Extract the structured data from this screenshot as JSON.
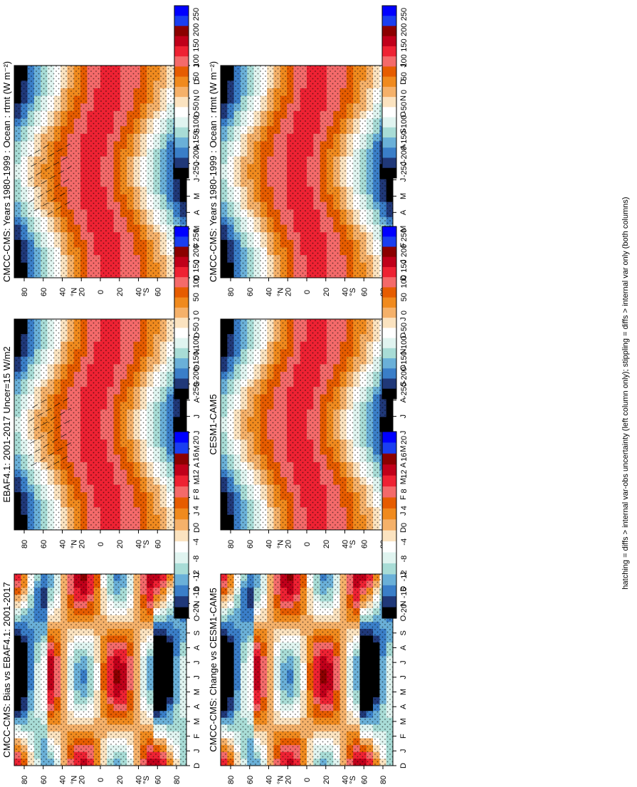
{
  "footnote": "hatching = diffs > internal var-obs uncertainty (left column only); stippling = diffs > internal var only (both columns)",
  "months": [
    "D",
    "J",
    "F",
    "M",
    "A",
    "M",
    "J",
    "J",
    "A",
    "S",
    "O",
    "N",
    "D",
    "J"
  ],
  "lat_ticks": [
    "80",
    "60",
    "40",
    "20",
    "0",
    "20",
    "40",
    "60",
    "80"
  ],
  "lat_units": [
    "°N",
    "°S"
  ],
  "colorbars": {
    "abs": [
      "250",
      "200",
      "150",
      "100",
      "50",
      "0",
      "-50",
      "-100",
      "-150",
      "-200",
      "-250"
    ],
    "diff": [
      "20",
      "16",
      "12",
      "8",
      "4",
      "0",
      "-4",
      "-8",
      "-12",
      "-16",
      "-20"
    ]
  },
  "colors": [
    "#0000ff",
    "#1a3ef0",
    "#8b0000",
    "#c0001a",
    "#ee2233",
    "#f46a6a",
    "#e65c00",
    "#f08a1e",
    "#f5b16a",
    "#fbe3c0",
    "#ffffff",
    "#e0f4f0",
    "#a8dcd6",
    "#6ab0d8",
    "#3a7ec8",
    "#203878",
    "#000000"
  ],
  "chart_data": [
    {
      "type": "heatmap",
      "title": "CMCC-CMS: Years 1980-1999 : Ocean : rtmt (W m⁻²)",
      "column": "left",
      "row": 1,
      "kind": "abs",
      "value_range": [
        -250,
        250
      ],
      "hatching": true,
      "stippling": true
    },
    {
      "type": "heatmap",
      "title": "EBAF4.1: 2001-2017 Uncer=15 W/m2",
      "column": "left",
      "row": 2,
      "kind": "abs",
      "value_range": [
        -250,
        250
      ],
      "hatching": true,
      "stippling": true
    },
    {
      "type": "heatmap",
      "title": "CMCC-CMS: Bias vs EBAF4.1: 2001-2017",
      "column": "left",
      "row": 3,
      "kind": "diff",
      "value_range": [
        -20,
        20
      ],
      "hatching": true,
      "stippling": true
    },
    {
      "type": "heatmap",
      "title": "CMCC-CMS: Years 1980-1999 : Ocean : rtmt (W m⁻²)",
      "column": "right",
      "row": 1,
      "kind": "abs",
      "value_range": [
        -250,
        250
      ],
      "hatching": false,
      "stippling": true
    },
    {
      "type": "heatmap",
      "title": "CESM1-CAM5",
      "column": "right",
      "row": 2,
      "kind": "abs",
      "value_range": [
        -250,
        250
      ],
      "hatching": false,
      "stippling": true
    },
    {
      "type": "heatmap",
      "title": "CMCC-CMS: Change vs CESM1-CAM5",
      "column": "right",
      "row": 3,
      "kind": "diff",
      "value_range": [
        -20,
        20
      ],
      "hatching": false,
      "stippling": true
    }
  ]
}
